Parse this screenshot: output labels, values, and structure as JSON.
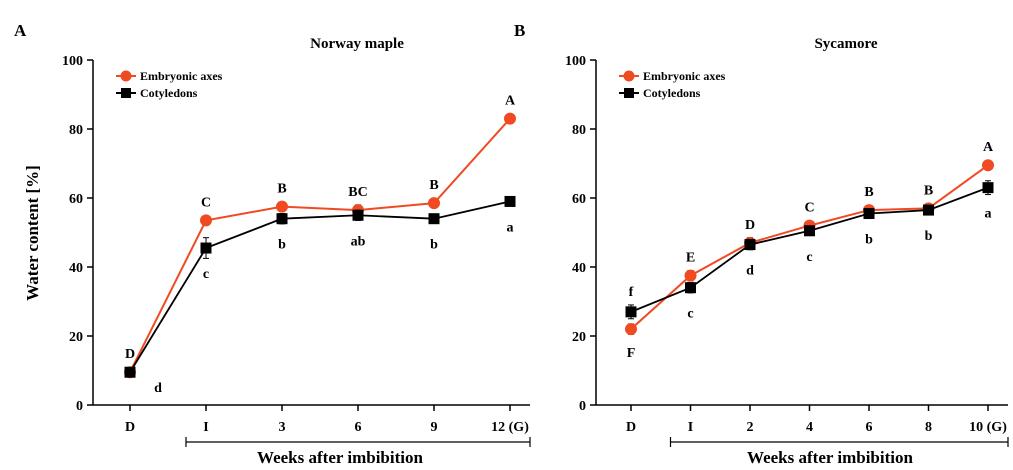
{
  "figure": {
    "ylabel": "Water content [%]",
    "xlabel": "Weeks after imbibition"
  },
  "colors": {
    "embryonic_axes": "#f04a23",
    "cotyledons": "#000000",
    "axis": "#000000"
  },
  "chart_data": [
    {
      "panel": "A",
      "type": "line",
      "title": "Norway maple",
      "categories": [
        "D",
        "I",
        "3",
        "6",
        "9",
        "12 (G)"
      ],
      "ylim": [
        0,
        100
      ],
      "yticks": [
        0,
        20,
        40,
        60,
        80,
        100
      ],
      "grid": false,
      "legend_position": "top-left",
      "series": [
        {
          "name": "Embryonic axes",
          "marker": "circle",
          "values": [
            9.5,
            53.5,
            57.5,
            56.5,
            58.5,
            83
          ],
          "errors": [
            0.8,
            1,
            1,
            1.5,
            1,
            1
          ],
          "labels": [
            "D",
            "C",
            "B",
            "BC",
            "B",
            "A"
          ]
        },
        {
          "name": "Cotyledons",
          "marker": "square",
          "values": [
            9.5,
            45.5,
            54,
            55,
            54,
            59
          ],
          "errors": [
            0.8,
            3,
            1.5,
            1.5,
            1,
            1
          ],
          "labels": [
            "d",
            "c",
            "b",
            "ab",
            "b",
            "a"
          ]
        }
      ]
    },
    {
      "panel": "B",
      "type": "line",
      "title": "Sycamore",
      "categories": [
        "D",
        "I",
        "2",
        "4",
        "6",
        "8",
        "10 (G)"
      ],
      "ylim": [
        0,
        100
      ],
      "yticks": [
        0,
        20,
        40,
        60,
        80,
        100
      ],
      "grid": false,
      "legend_position": "top-left",
      "series": [
        {
          "name": "Embryonic axes",
          "marker": "circle",
          "values": [
            22,
            37.5,
            47,
            52,
            56.5,
            57,
            69.5
          ],
          "errors": [
            1.5,
            1.5,
            1.5,
            1,
            1,
            1,
            1
          ],
          "labels": [
            "F",
            "E",
            "D",
            "C",
            "B",
            "B",
            "A"
          ]
        },
        {
          "name": "Cotyledons",
          "marker": "square",
          "values": [
            27,
            34,
            46.5,
            50.5,
            55.5,
            56.5,
            63
          ],
          "errors": [
            2,
            1.5,
            1.5,
            1,
            1,
            1,
            2
          ],
          "labels": [
            "f",
            "c",
            "d",
            "c",
            "b",
            "b",
            "a"
          ]
        }
      ]
    }
  ]
}
